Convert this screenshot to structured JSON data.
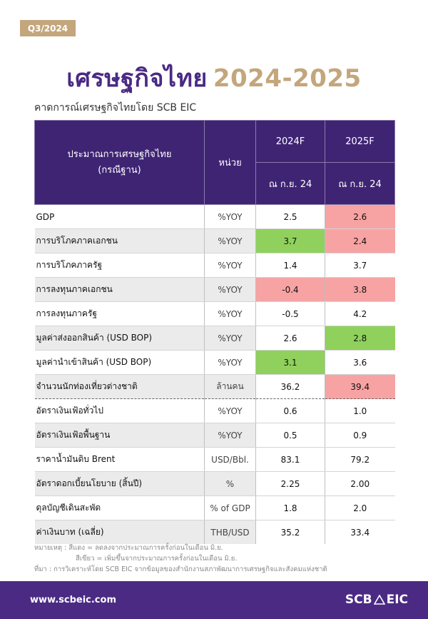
{
  "badge": "Q3/2024",
  "title": {
    "thai": "เศรษฐกิจไทย",
    "years": "2024-2025"
  },
  "subtitle": "คาดการณ์เศรษฐกิจไทยโดย SCB EIC",
  "table": {
    "header": {
      "indicator_line1": "ประมาณการเศรษฐกิจไทย",
      "indicator_line2": "(กรณีฐาน)",
      "unit": "หน่วย",
      "col1": "2024F",
      "col2": "2025F",
      "col1_sub": "ณ ก.ย. 24",
      "col2_sub": "ณ ก.ย. 24"
    },
    "rows": [
      {
        "name": "GDP",
        "unit": "%YOY",
        "v2024": "2.5",
        "v2025": "2.6",
        "c2024": "",
        "c2025": "#f7a3a3"
      },
      {
        "name": "การบริโภคภาคเอกชน",
        "unit": "%YOY",
        "v2024": "3.7",
        "v2025": "2.4",
        "c2024": "#8fd15c",
        "c2025": "#f7a3a3"
      },
      {
        "name": "การบริโภคภาครัฐ",
        "unit": "%YOY",
        "v2024": "1.4",
        "v2025": "3.7",
        "c2024": "",
        "c2025": ""
      },
      {
        "name": "การลงทุนภาคเอกชน",
        "unit": "%YOY",
        "v2024": "-0.4",
        "v2025": "3.8",
        "c2024": "#f7a3a3",
        "c2025": "#f7a3a3"
      },
      {
        "name": "การลงทุนภาครัฐ",
        "unit": "%YOY",
        "v2024": "-0.5",
        "v2025": "4.2",
        "c2024": "",
        "c2025": ""
      },
      {
        "name": "มูลค่าส่งออกสินค้า (USD BOP)",
        "unit": "%YOY",
        "v2024": "2.6",
        "v2025": "2.8",
        "c2024": "",
        "c2025": "#8fd15c"
      },
      {
        "name": "มูลค่านำเข้าสินค้า (USD BOP)",
        "unit": "%YOY",
        "v2024": "3.1",
        "v2025": "3.6",
        "c2024": "#8fd15c",
        "c2025": ""
      },
      {
        "name": "จำนวนนักท่องเที่ยวต่างชาติ",
        "unit": "ล้านคน",
        "v2024": "36.2",
        "v2025": "39.4",
        "c2024": "",
        "c2025": "#f7a3a3"
      },
      {
        "name": "อัตราเงินเฟ้อทั่วไป",
        "unit": "%YOY",
        "v2024": "0.6",
        "v2025": "1.0",
        "c2024": "",
        "c2025": ""
      },
      {
        "name": "อัตราเงินเฟ้อพื้นฐาน",
        "unit": "%YOY",
        "v2024": "0.5",
        "v2025": "0.9",
        "c2024": "",
        "c2025": ""
      },
      {
        "name": "ราคาน้ำมันดิบ Brent",
        "unit": "USD/Bbl.",
        "v2024": "83.1",
        "v2025": "79.2",
        "c2024": "",
        "c2025": ""
      },
      {
        "name": "อัตราดอกเบี้ยนโยบาย (สิ้นปี)",
        "unit": "%",
        "v2024": "2.25",
        "v2025": "2.00",
        "c2024": "",
        "c2025": ""
      },
      {
        "name": "ดุลบัญชีเดินสะพัด",
        "unit": "% of GDP",
        "v2024": "1.8",
        "v2025": "2.0",
        "c2024": "",
        "c2025": ""
      },
      {
        "name": "ค่าเงินบาท (เฉลี่ย)",
        "unit": "THB/USD",
        "v2024": "35.2",
        "v2025": "33.4",
        "c2024": "",
        "c2025": ""
      }
    ]
  },
  "notes": {
    "line1": "หมายเหตุ : สีแดง = ลดลงจากประมาณการครั้งก่อนในเดือน มิ.ย.",
    "line2": "สีเขียว = เพิ่มขึ้นจากประมาณการครั้งก่อนในเดือน มิ.ย.",
    "line3": "ที่มา : การวิเคราะห์โดย SCB EIC จากข้อมูลของสำนักงานสภาพัฒนาการเศรษฐกิจและสังคมแห่งชาติ"
  },
  "footer": {
    "url": "www.scbeic.com",
    "logo_left": "SCB",
    "logo_right": "EIC"
  }
}
